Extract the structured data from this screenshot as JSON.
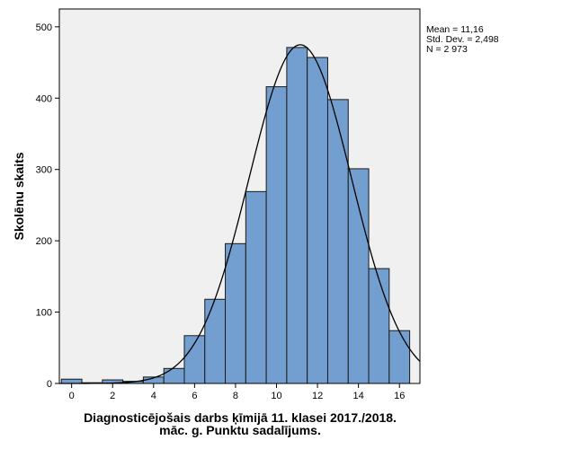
{
  "chart_data": {
    "type": "bar",
    "subtype": "histogram",
    "bin_width": 1,
    "x": [
      0,
      1,
      2,
      3,
      4,
      5,
      6,
      7,
      8,
      9,
      10,
      11,
      12,
      13,
      14,
      15,
      16
    ],
    "values": [
      6,
      1,
      5,
      3,
      9,
      21,
      67,
      118,
      196,
      269,
      416,
      471,
      457,
      398,
      301,
      161,
      74
    ],
    "xlim": [
      -0.6,
      17.0
    ],
    "ylim": [
      0,
      525
    ],
    "x_ticks": [
      0,
      2,
      4,
      6,
      8,
      10,
      12,
      14,
      16
    ],
    "y_ticks": [
      0,
      100,
      200,
      300,
      400,
      500
    ],
    "xlabel_lines": [
      "Diagnosticējošais darbs ķīmijā 11. klasei 2017./2018.",
      "māc. g. Punktu sadalījums."
    ],
    "ylabel": "Skolēnu skaits",
    "normal_curve": {
      "mean": 11.16,
      "sd": 2.498,
      "n": 2973
    },
    "stats_lines": [
      "Mean = 11,16",
      "Std. Dev. = 2,498",
      "N = 2 973"
    ],
    "grid": false,
    "colors": {
      "plot_background": "#f0f0f0",
      "bar_fill": "#729fcf",
      "bar_stroke": "#1a1a1a",
      "curve": "#000000"
    }
  }
}
